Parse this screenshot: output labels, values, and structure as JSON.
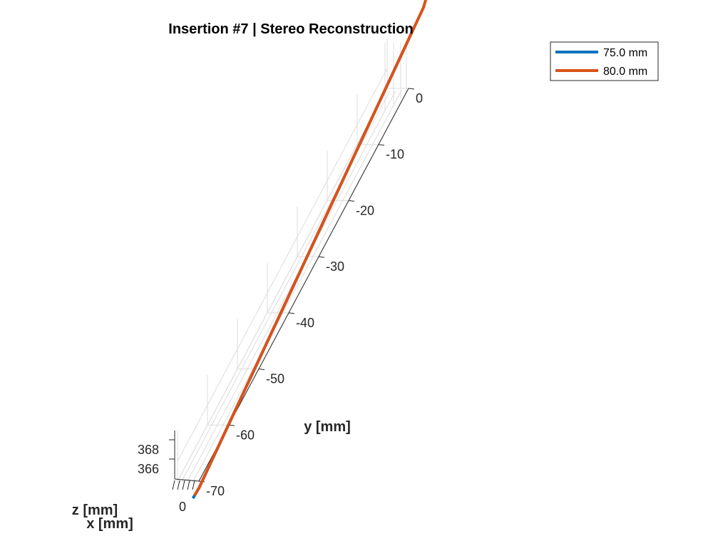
{
  "chart_data": {
    "type": "line",
    "projection": "3d",
    "title": "Insertion #7 | Stereo Reconstruction",
    "xlabel": "x [mm]",
    "ylabel": "y [mm]",
    "zlabel": "z [mm]",
    "x_ticks": [
      "0"
    ],
    "y_ticks": [
      "0",
      "-10",
      "-20",
      "-30",
      "-40",
      "-50",
      "-60",
      "-70"
    ],
    "z_ticks": [
      "366",
      "368"
    ],
    "ylim": [
      -72,
      6
    ],
    "grid": true,
    "legend_position": "top-right",
    "series": [
      {
        "name": "75.0 mm",
        "color": "#0072bd",
        "y": [
          -72,
          -70,
          -65,
          -60,
          -55,
          -50,
          -45,
          -40,
          -35,
          -30,
          -25,
          -20,
          -15,
          -10,
          -5,
          0,
          1.8
        ],
        "z": [
          365.4,
          365.3,
          365.7,
          366.1,
          366.5,
          366.9,
          367.3,
          367.7,
          368.1,
          368.5,
          368.9,
          369.3,
          369.7,
          370.1,
          370.5,
          370.9,
          371.1
        ]
      },
      {
        "name": "80.0 mm",
        "color": "#d95319",
        "y": [
          -71.5,
          -70,
          -65,
          -60,
          -55,
          -50,
          -45,
          -40,
          -35,
          -30,
          -25,
          -20,
          -15,
          -10,
          -5,
          0,
          5,
          6
        ],
        "z": [
          365.4,
          365.3,
          365.7,
          366.1,
          366.5,
          366.9,
          367.3,
          367.7,
          368.1,
          368.5,
          368.9,
          369.3,
          369.7,
          370.1,
          370.5,
          370.9,
          371.3,
          371.8
        ]
      }
    ]
  }
}
